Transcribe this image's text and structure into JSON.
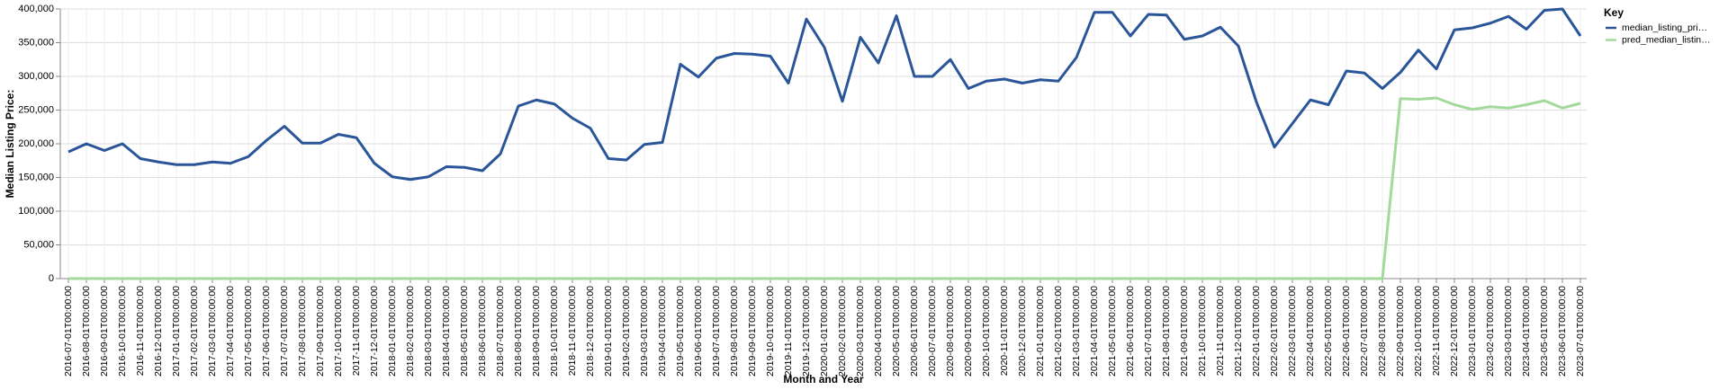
{
  "chart_data": {
    "type": "line",
    "x_label": "Month and Year",
    "y_label": "Median Listing Price:",
    "legend_title": "Key",
    "legend_position": "right",
    "grid": true,
    "categories": [
      "2016-07-01T00:00:00",
      "2016-08-01T00:00:00",
      "2016-09-01T00:00:00",
      "2016-10-01T00:00:00",
      "2016-11-01T00:00:00",
      "2016-12-01T00:00:00",
      "2017-01-01T00:00:00",
      "2017-02-01T00:00:00",
      "2017-03-01T00:00:00",
      "2017-04-01T00:00:00",
      "2017-05-01T00:00:00",
      "2017-06-01T00:00:00",
      "2017-07-01T00:00:00",
      "2017-08-01T00:00:00",
      "2017-09-01T00:00:00",
      "2017-10-01T00:00:00",
      "2017-11-01T00:00:00",
      "2017-12-01T00:00:00",
      "2018-01-01T00:00:00",
      "2018-02-01T00:00:00",
      "2018-03-01T00:00:00",
      "2018-04-01T00:00:00",
      "2018-05-01T00:00:00",
      "2018-06-01T00:00:00",
      "2018-07-01T00:00:00",
      "2018-08-01T00:00:00",
      "2018-09-01T00:00:00",
      "2018-10-01T00:00:00",
      "2018-11-01T00:00:00",
      "2018-12-01T00:00:00",
      "2019-01-01T00:00:00",
      "2019-02-01T00:00:00",
      "2019-03-01T00:00:00",
      "2019-04-01T00:00:00",
      "2019-05-01T00:00:00",
      "2019-06-01T00:00:00",
      "2019-07-01T00:00:00",
      "2019-08-01T00:00:00",
      "2019-09-01T00:00:00",
      "2019-10-01T00:00:00",
      "2019-11-01T00:00:00",
      "2019-12-01T00:00:00",
      "2020-01-01T00:00:00",
      "2020-02-01T00:00:00",
      "2020-03-01T00:00:00",
      "2020-04-01T00:00:00",
      "2020-05-01T00:00:00",
      "2020-06-01T00:00:00",
      "2020-07-01T00:00:00",
      "2020-08-01T00:00:00",
      "2020-09-01T00:00:00",
      "2020-10-01T00:00:00",
      "2020-11-01T00:00:00",
      "2020-12-01T00:00:00",
      "2021-01-01T00:00:00",
      "2021-02-01T00:00:00",
      "2021-03-01T00:00:00",
      "2021-04-01T00:00:00",
      "2021-05-01T00:00:00",
      "2021-06-01T00:00:00",
      "2021-07-01T00:00:00",
      "2021-08-01T00:00:00",
      "2021-09-01T00:00:00",
      "2021-10-01T00:00:00",
      "2021-11-01T00:00:00",
      "2021-12-01T00:00:00",
      "2022-01-01T00:00:00",
      "2022-02-01T00:00:00",
      "2022-03-01T00:00:00",
      "2022-04-01T00:00:00",
      "2022-05-01T00:00:00",
      "2022-06-01T00:00:00",
      "2022-07-01T00:00:00",
      "2022-08-01T00:00:00",
      "2022-09-01T00:00:00",
      "2022-10-01T00:00:00",
      "2022-11-01T00:00:00",
      "2022-12-01T00:00:00",
      "2023-01-01T00:00:00",
      "2023-02-01T00:00:00",
      "2023-03-01T00:00:00",
      "2023-04-01T00:00:00",
      "2023-05-01T00:00:00",
      "2023-06-01T00:00:00",
      "2023-07-01T00:00:00"
    ],
    "series": [
      {
        "name": "median_listing_pri…",
        "color": "#2a5599",
        "values": [
          188000,
          200000,
          190000,
          200000,
          178000,
          173000,
          169000,
          169000,
          173000,
          171000,
          181000,
          205000,
          226000,
          201000,
          201000,
          214000,
          209000,
          171000,
          151000,
          147000,
          151000,
          166000,
          165000,
          160000,
          185000,
          256000,
          265000,
          259000,
          238000,
          223000,
          178000,
          176000,
          199000,
          202000,
          318000,
          299000,
          327000,
          334000,
          333000,
          330000,
          290000,
          385000,
          343000,
          263000,
          358000,
          320000,
          390000,
          300000,
          300000,
          325000,
          282000,
          293000,
          296000,
          290000,
          295000,
          293000,
          328000,
          395000,
          395000,
          360000,
          392000,
          391000,
          355000,
          360000,
          373000,
          345000,
          262000,
          195000,
          230000,
          265000,
          258000,
          308000,
          305000,
          282000,
          306000,
          339000,
          311000,
          369000,
          372000,
          379000,
          389000,
          370000,
          398000,
          400000,
          360000
        ]
      },
      {
        "name": "pred_median_listin…",
        "color": "#a3d99b",
        "values": [
          0,
          0,
          0,
          0,
          0,
          0,
          0,
          0,
          0,
          0,
          0,
          0,
          0,
          0,
          0,
          0,
          0,
          0,
          0,
          0,
          0,
          0,
          0,
          0,
          0,
          0,
          0,
          0,
          0,
          0,
          0,
          0,
          0,
          0,
          0,
          0,
          0,
          0,
          0,
          0,
          0,
          0,
          0,
          0,
          0,
          0,
          0,
          0,
          0,
          0,
          0,
          0,
          0,
          0,
          0,
          0,
          0,
          0,
          0,
          0,
          0,
          0,
          0,
          0,
          0,
          0,
          0,
          0,
          0,
          0,
          0,
          0,
          0,
          0,
          267000,
          266000,
          268000,
          258000,
          251000,
          255000,
          253000,
          258000,
          264000,
          253000,
          260000
        ]
      }
    ],
    "ylim": [
      0,
      400000
    ],
    "yticks": [
      0,
      {
        "value": 50000,
        "label": "50,000"
      },
      {
        "value": 100000,
        "label": "100,000"
      },
      {
        "value": 150000,
        "label": "150,000"
      },
      {
        "value": 200000,
        "label": "200,000"
      },
      {
        "value": 250000,
        "label": "250,000"
      },
      {
        "value": 300000,
        "label": "300,000"
      },
      {
        "value": 350000,
        "label": "350,000"
      },
      {
        "value": 400000,
        "label": "400,000"
      }
    ]
  }
}
